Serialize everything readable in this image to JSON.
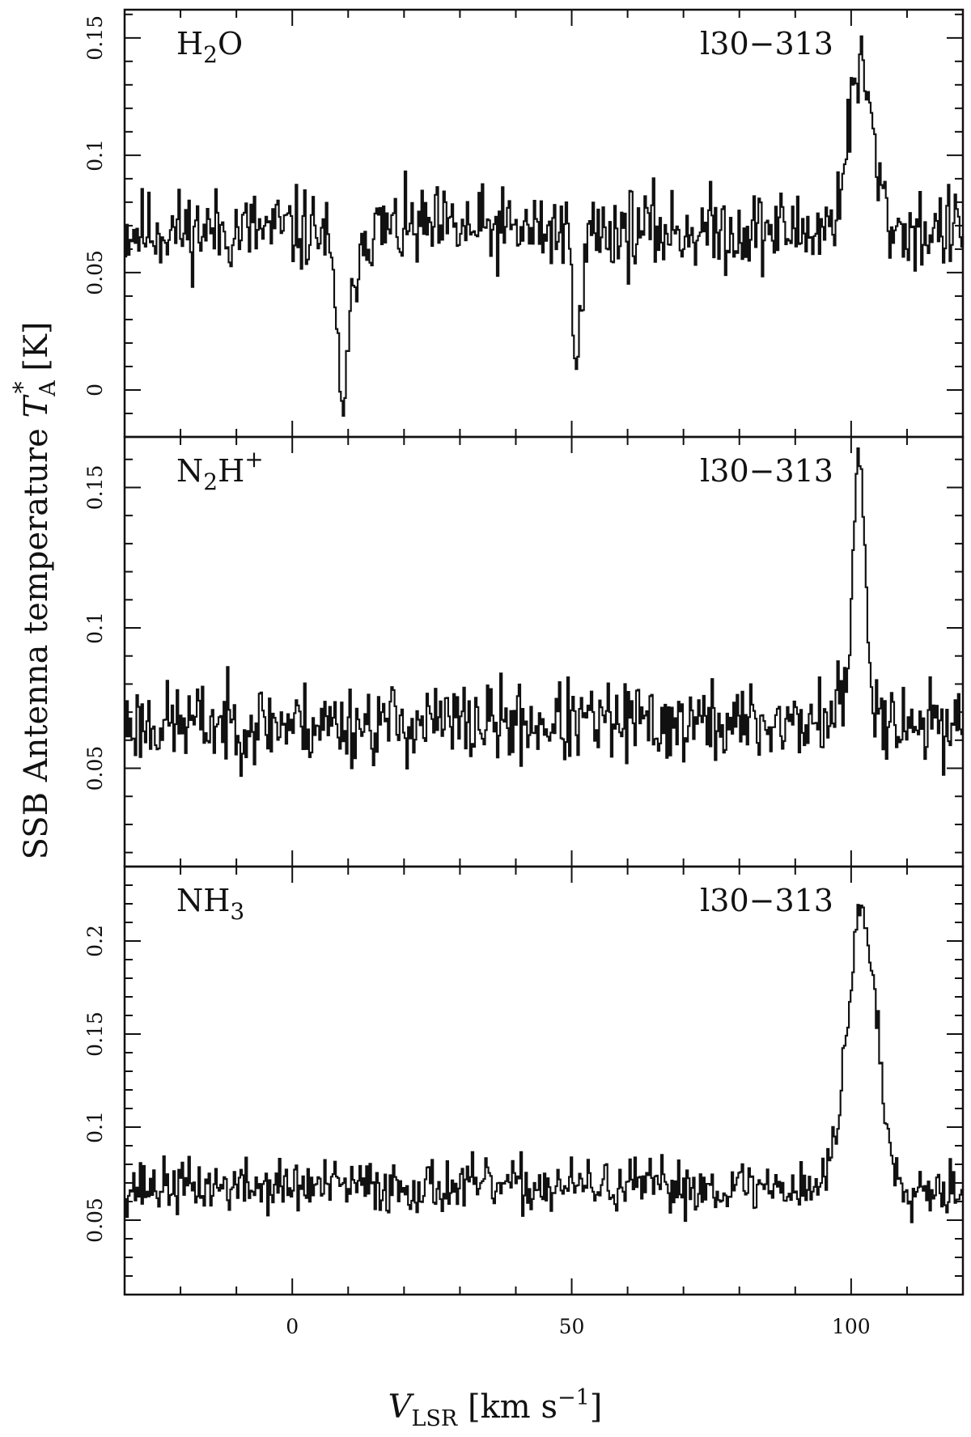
{
  "chart_data": {
    "type": "line",
    "shared_x": {
      "label": "V_LSR [km s^-1]",
      "label_parts": {
        "symbol": "V",
        "subscript": "LSR",
        "unit_open": " [km s",
        "exponent": "−1",
        "unit_close": "]"
      },
      "range": [
        -30,
        120
      ],
      "ticks": [
        0,
        50,
        100
      ],
      "minor_step": 10
    },
    "ylabel": "SSB Antenna temperature T_A^* [K]",
    "ylabel_parts": {
      "prefix": "SSB Antenna temperature ",
      "symbol": "T",
      "subscript": "A",
      "superscript": "*",
      "suffix": " [K]"
    },
    "panels": [
      {
        "name": "H2O",
        "label": {
          "base": "H",
          "sub": "2",
          "rest": "O",
          "sup": ""
        },
        "source": "l30−313",
        "ylim": [
          -0.02,
          0.162
        ],
        "yticks": [
          0,
          0.05,
          0.1,
          0.15
        ],
        "ytick_labels": [
          "0",
          "0.05",
          "0.1",
          "0.15"
        ],
        "baseline": 0.068,
        "noise": 0.011,
        "seed": 11,
        "features": [
          {
            "center": 9,
            "amplitude": -0.07,
            "width": 1.3
          },
          {
            "center": 51,
            "amplitude": -0.05,
            "width": 0.8
          },
          {
            "center": 101.5,
            "amplitude": 0.068,
            "width": 2.2
          }
        ]
      },
      {
        "name": "N2H+",
        "label": {
          "base": "N",
          "sub": "2",
          "rest": "H",
          "sup": "+"
        },
        "source": "l30−313",
        "ylim": [
          0.015,
          0.168
        ],
        "yticks": [
          0.05,
          0.1,
          0.15
        ],
        "ytick_labels": [
          "0.05",
          "0.1",
          "0.15"
        ],
        "baseline": 0.066,
        "noise": 0.009,
        "seed": 23,
        "features": [
          {
            "center": 101.3,
            "amplitude": 0.082,
            "width": 0.9
          },
          {
            "center": 101.3,
            "amplitude": 0.015,
            "width": 3.0
          }
        ]
      },
      {
        "name": "NH3",
        "label": {
          "base": "NH",
          "sub": "3",
          "rest": "",
          "sup": ""
        },
        "source": "l30−313",
        "ylim": [
          0.01,
          0.24
        ],
        "yticks": [
          0.05,
          0.1,
          0.15,
          0.2
        ],
        "ytick_labels": [
          "0.05",
          "0.1",
          "0.15",
          "0.2"
        ],
        "baseline": 0.068,
        "noise": 0.009,
        "seed": 37,
        "features": [
          {
            "center": 101.8,
            "amplitude": 0.148,
            "width": 2.6
          }
        ]
      }
    ]
  }
}
